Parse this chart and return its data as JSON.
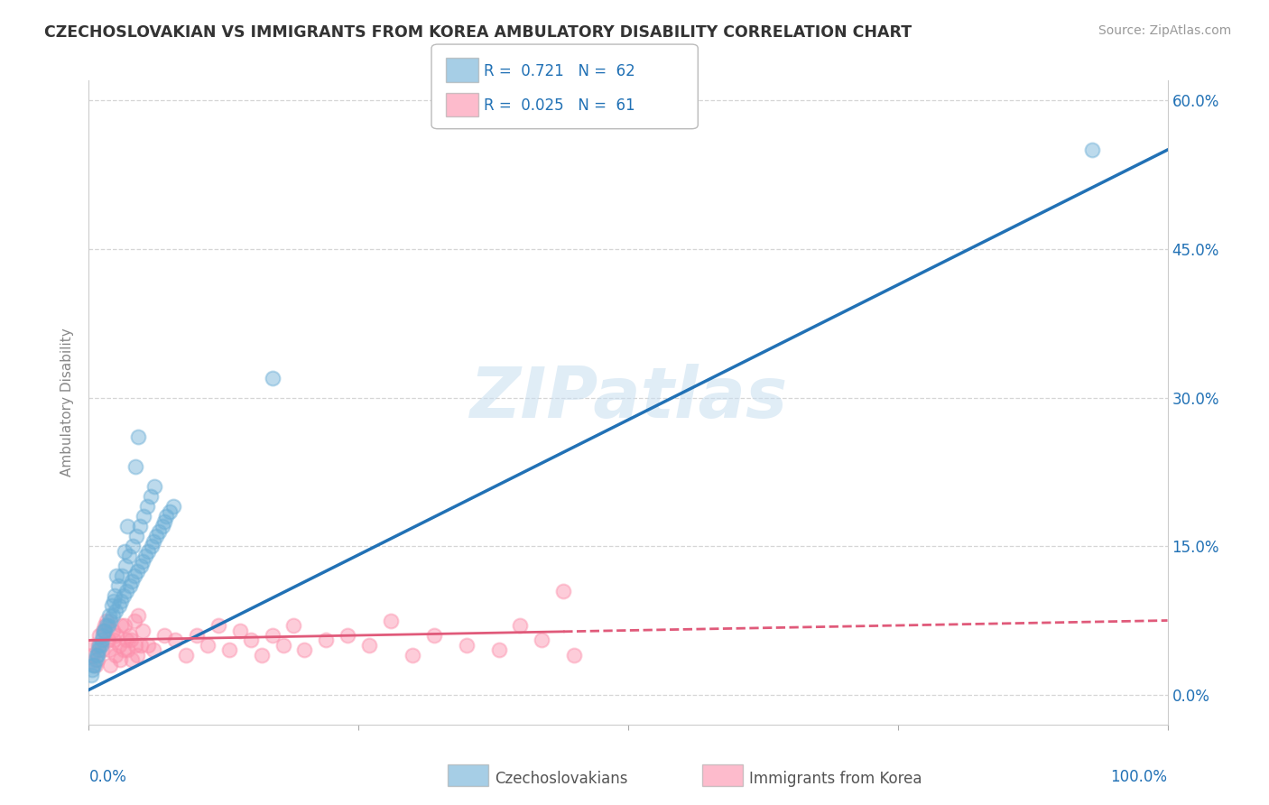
{
  "title": "CZECHOSLOVAKIAN VS IMMIGRANTS FROM KOREA AMBULATORY DISABILITY CORRELATION CHART",
  "source": "Source: ZipAtlas.com",
  "ylabel": "Ambulatory Disability",
  "legend_blue_r": "0.721",
  "legend_blue_n": "62",
  "legend_pink_r": "0.025",
  "legend_pink_n": "61",
  "legend_label_blue": "Czechoslovakians",
  "legend_label_pink": "Immigrants from Korea",
  "blue_color": "#6BAED6",
  "pink_color": "#FC8FAB",
  "blue_line_color": "#2171B5",
  "pink_line_color": "#E05A7A",
  "background_color": "#FFFFFF",
  "grid_color": "#CCCCCC",
  "watermark": "ZIPatlas",
  "blue_scatter_x": [
    0.5,
    0.8,
    1.0,
    1.2,
    1.5,
    1.8,
    2.0,
    2.2,
    2.5,
    2.8,
    3.0,
    3.2,
    3.5,
    3.8,
    4.0,
    4.2,
    4.5,
    4.8,
    5.0,
    5.2,
    5.5,
    5.8,
    6.0,
    6.2,
    6.5,
    6.8,
    7.0,
    7.2,
    7.5,
    7.8,
    0.3,
    0.6,
    0.9,
    1.1,
    1.3,
    1.6,
    1.9,
    2.1,
    2.4,
    2.7,
    3.1,
    3.4,
    3.7,
    4.1,
    4.4,
    4.7,
    5.1,
    5.4,
    5.7,
    6.1,
    0.2,
    0.4,
    0.7,
    1.4,
    2.3,
    2.6,
    3.3,
    3.6,
    4.3,
    4.6,
    93.0,
    17.0
  ],
  "blue_scatter_y": [
    3.0,
    4.0,
    5.0,
    5.5,
    6.5,
    7.0,
    7.5,
    8.0,
    8.5,
    9.0,
    9.5,
    10.0,
    10.5,
    11.0,
    11.5,
    12.0,
    12.5,
    13.0,
    13.5,
    14.0,
    14.5,
    15.0,
    15.5,
    16.0,
    16.5,
    17.0,
    17.5,
    18.0,
    18.5,
    19.0,
    2.5,
    3.5,
    4.5,
    5.0,
    6.0,
    7.0,
    8.0,
    9.0,
    10.0,
    11.0,
    12.0,
    13.0,
    14.0,
    15.0,
    16.0,
    17.0,
    18.0,
    19.0,
    20.0,
    21.0,
    2.0,
    3.0,
    4.0,
    6.5,
    9.5,
    12.0,
    14.5,
    17.0,
    23.0,
    26.0,
    55.0,
    32.0
  ],
  "pink_scatter_x": [
    0.3,
    0.5,
    0.8,
    1.0,
    1.2,
    1.5,
    1.8,
    2.0,
    2.2,
    2.5,
    2.8,
    3.0,
    3.2,
    3.5,
    3.8,
    4.0,
    4.2,
    4.5,
    4.8,
    5.0,
    5.5,
    6.0,
    7.0,
    8.0,
    9.0,
    10.0,
    11.0,
    12.0,
    13.0,
    14.0,
    15.0,
    16.0,
    17.0,
    18.0,
    19.0,
    20.0,
    22.0,
    24.0,
    26.0,
    28.0,
    30.0,
    32.0,
    35.0,
    38.0,
    40.0,
    42.0,
    45.0,
    0.6,
    0.9,
    1.3,
    1.6,
    1.9,
    2.3,
    2.6,
    2.9,
    3.3,
    3.6,
    3.9,
    4.3,
    4.6,
    44.0
  ],
  "pink_scatter_y": [
    4.0,
    5.0,
    3.5,
    6.0,
    4.5,
    7.0,
    5.5,
    3.0,
    6.5,
    4.0,
    5.0,
    7.0,
    4.5,
    5.5,
    6.0,
    3.5,
    7.5,
    4.0,
    5.0,
    6.5,
    5.0,
    4.5,
    6.0,
    5.5,
    4.0,
    6.0,
    5.0,
    7.0,
    4.5,
    6.5,
    5.5,
    4.0,
    6.0,
    5.0,
    7.0,
    4.5,
    5.5,
    6.0,
    5.0,
    7.5,
    4.0,
    6.0,
    5.0,
    4.5,
    7.0,
    5.5,
    4.0,
    3.0,
    5.0,
    6.5,
    7.5,
    4.5,
    5.5,
    6.0,
    3.5,
    7.0,
    4.5,
    5.5,
    5.0,
    8.0,
    10.5
  ],
  "blue_line_x0": 0.0,
  "blue_line_y0": 0.5,
  "blue_line_x1": 100.0,
  "blue_line_y1": 55.0,
  "pink_line_x0": 0.0,
  "pink_line_y0": 5.5,
  "pink_line_x1": 100.0,
  "pink_line_y1": 7.5,
  "xmin": 0.0,
  "xmax": 100.0,
  "ymin": -3.0,
  "ymax": 62.0,
  "ytick_values": [
    0.0,
    15.0,
    30.0,
    45.0,
    60.0
  ],
  "ytick_labels": [
    "0.0%",
    "15.0%",
    "30.0%",
    "45.0%",
    "60.0%"
  ]
}
